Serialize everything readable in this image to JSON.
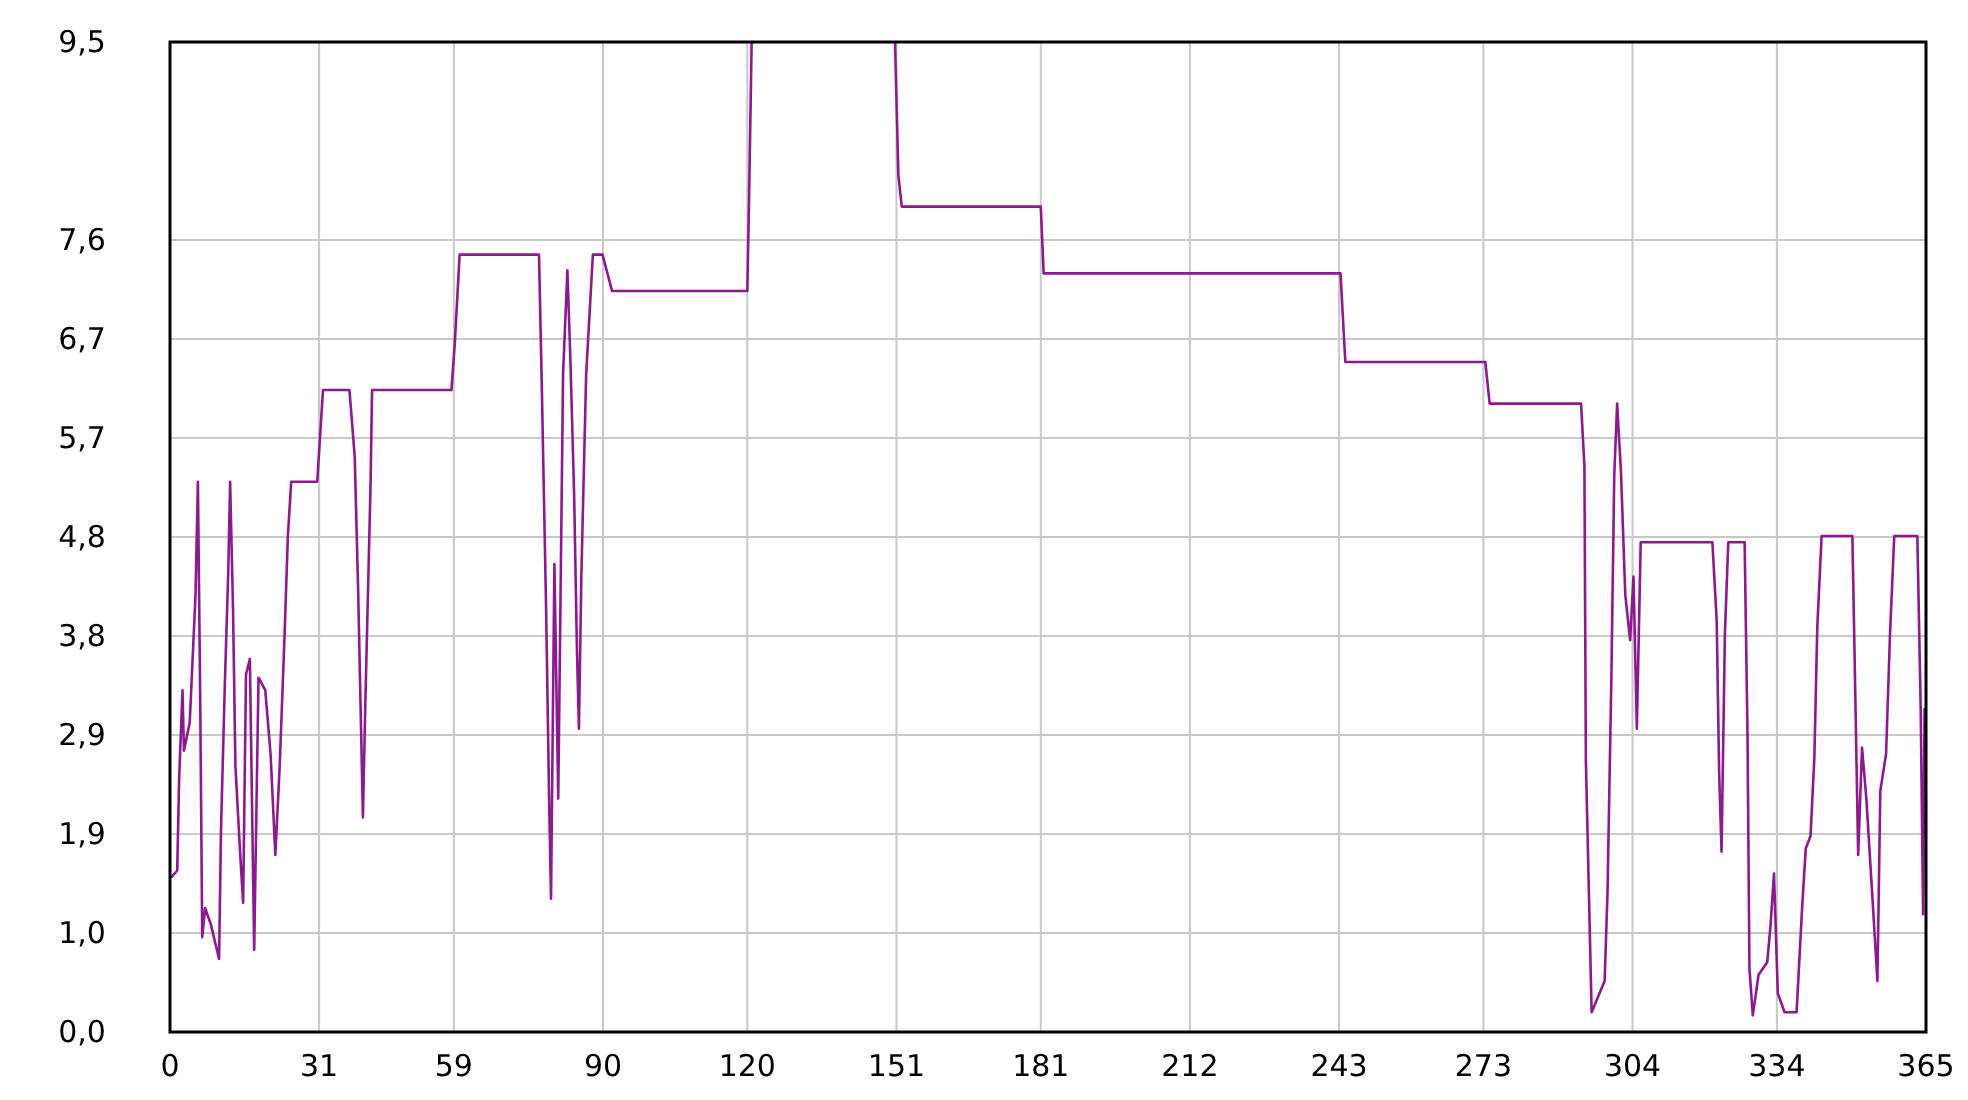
{
  "chart_data": {
    "type": "line",
    "x": [
      0.4,
      1.5,
      1.9,
      2.6,
      2.9,
      4.1,
      5.3,
      5.8,
      6.3,
      6.7,
      7.3,
      8.5,
      10.2,
      10.6,
      11.4,
      12.1,
      12.5,
      13.1,
      13.6,
      14.6,
      15.2,
      15.8,
      16.6,
      17.5,
      18.4,
      19.8,
      20.9,
      21.9,
      22.8,
      23.8,
      24.5,
      25.2,
      30.6,
      31.8,
      37.3,
      38.4,
      39.1,
      40.1,
      40.6,
      41.7,
      42.0,
      58.5,
      59.2,
      60.2,
      76.7,
      77.3,
      78.2,
      78.8,
      79.2,
      79.9,
      80.7,
      81.7,
      82.6,
      83.2,
      84.0,
      84.6,
      85.0,
      85.5,
      86.5,
      87.9,
      89.9,
      91.9,
      120.0,
      120.3,
      120.9,
      136,
      150.7,
      151.4,
      152.1,
      181.0,
      181.6,
      243.3,
      244.3,
      273.4,
      274.3,
      293.3,
      294.0,
      294.3,
      295.5,
      298.2,
      298.8,
      299.6,
      300.2,
      300.8,
      301.6,
      302.5,
      303.5,
      304.2,
      304.9,
      305.7,
      320.6,
      321.5,
      322.0,
      322.5,
      323.2,
      323.9,
      327.3,
      327.9,
      328.3,
      329.0,
      330.2,
      332.0,
      332.7,
      333.4,
      334.2,
      335.6,
      338.1,
      339.2,
      340.0,
      341.0,
      341.8,
      342.4,
      343.3,
      349.7,
      350.3,
      350.9,
      351.7,
      352.6,
      353.8,
      354.9,
      355.5,
      356.7,
      357.5,
      358.4,
      363.2,
      363.9,
      364.4,
      364.7
    ],
    "series": [
      {
        "color": "#8b1a8f",
        "values": [
          1.49,
          1.55,
          2.43,
          3.28,
          2.7,
          2.97,
          4.19,
          5.28,
          3.1,
          0.91,
          1.19,
          1.03,
          0.7,
          1.94,
          3.34,
          4.4,
          5.28,
          4.06,
          2.55,
          1.7,
          1.24,
          3.43,
          3.58,
          0.79,
          3.4,
          3.28,
          2.67,
          1.7,
          2.55,
          3.79,
          4.76,
          5.28,
          5.28,
          6.16,
          6.16,
          5.52,
          4.25,
          2.06,
          3.15,
          5.28,
          6.16,
          6.16,
          6.61,
          7.46,
          7.46,
          6.16,
          4.0,
          2.24,
          1.28,
          4.49,
          2.24,
          6.31,
          7.31,
          6.49,
          5.16,
          3.64,
          2.91,
          4.37,
          6.31,
          7.46,
          7.46,
          7.11,
          7.11,
          7.82,
          9.5,
          null,
          9.5,
          8.22,
          7.92,
          7.92,
          7.28,
          7.28,
          6.43,
          6.43,
          6.03,
          6.03,
          5.43,
          2.61,
          0.19,
          0.49,
          1.34,
          3.4,
          5.34,
          6.03,
          5.37,
          4.19,
          3.76,
          4.37,
          2.91,
          4.7,
          4.7,
          3.94,
          2.49,
          1.73,
          3.82,
          4.7,
          4.7,
          2.85,
          0.61,
          0.16,
          0.55,
          0.67,
          1.03,
          1.52,
          0.37,
          0.19,
          0.19,
          1.15,
          1.76,
          1.88,
          2.64,
          3.88,
          4.76,
          4.76,
          3.25,
          1.7,
          2.73,
          2.24,
          1.34,
          0.49,
          2.31,
          2.67,
          3.79,
          4.76,
          4.76,
          3.1,
          1.13,
          3.1
        ]
      }
    ],
    "xlim": [
      0,
      365
    ],
    "xticks": [
      0,
      31,
      59,
      90,
      120,
      151,
      181,
      212,
      243,
      273,
      304,
      334,
      365
    ],
    "ylim": [
      0,
      9.5
    ],
    "yticks": [
      {
        "value": 0,
        "label": "0,0"
      },
      {
        "value": 0.95,
        "label": "1,0"
      },
      {
        "value": 1.9,
        "label": "1,9"
      },
      {
        "value": 2.85,
        "label": "2,9"
      },
      {
        "value": 3.8,
        "label": "3,8"
      },
      {
        "value": 4.75,
        "label": "4,8"
      },
      {
        "value": 5.7,
        "label": "5,7"
      },
      {
        "value": 6.65,
        "label": "6,7"
      },
      {
        "value": 7.6,
        "label": "7,6"
      },
      {
        "value": 9.5,
        "label": "9,5"
      }
    ],
    "grid": true
  }
}
